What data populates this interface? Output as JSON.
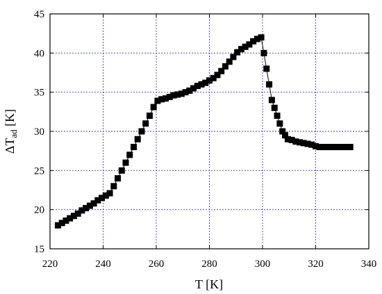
{
  "chart_data": {
    "type": "scatter",
    "title": "",
    "xlabel": "T [K]",
    "ylabel_prefix": "ΔT",
    "ylabel_sub": "ad",
    "ylabel_suffix": " [K]",
    "xlim": [
      220,
      340
    ],
    "ylim": [
      15,
      45
    ],
    "xticks": [
      220,
      240,
      260,
      280,
      300,
      320,
      340
    ],
    "yticks": [
      15,
      20,
      25,
      30,
      35,
      40,
      45
    ],
    "grid": true,
    "marker": "square",
    "marker_color": "#000000",
    "grid_color": "#3a3ab8",
    "series": [
      {
        "x": [
          223,
          224.5,
          226,
          227.5,
          229,
          230.5,
          232,
          233.5,
          235,
          236.5,
          238,
          239.5,
          241,
          242.5,
          244,
          245.5,
          247,
          248.5,
          250,
          251.5,
          253,
          254.5,
          256,
          257.5,
          259,
          260.5,
          262,
          263.5,
          265,
          266.5,
          268,
          269.5,
          271,
          272.5,
          274,
          275.5,
          277,
          278.5,
          280,
          281.5,
          283,
          284.5,
          286,
          287.5,
          289,
          290.5,
          292,
          293.5,
          295,
          296.5,
          298,
          299.5,
          300.5,
          301.5,
          302.5,
          303.5,
          304.5,
          305.5,
          306.5,
          307.5,
          308.5,
          309.5,
          311,
          312.5,
          314,
          315.5,
          317,
          318.5,
          320,
          321.5,
          323,
          324.5,
          326,
          327.5,
          329,
          330.5,
          332,
          333
        ],
        "y": [
          18,
          18.3,
          18.6,
          18.9,
          19.2,
          19.5,
          19.9,
          20.2,
          20.5,
          20.8,
          21.2,
          21.5,
          21.8,
          22.1,
          23,
          24,
          25,
          26,
          27,
          28,
          29,
          30,
          31,
          32,
          33.1,
          33.9,
          34.1,
          34.2,
          34.4,
          34.6,
          34.7,
          34.8,
          35,
          35.2,
          35.5,
          35.8,
          36,
          36.2,
          36.5,
          36.8,
          37.2,
          37.7,
          38.3,
          38.9,
          39.5,
          40.1,
          40.5,
          40.8,
          41.1,
          41.5,
          41.8,
          42,
          40,
          38,
          36,
          34,
          33,
          32,
          31,
          30,
          29.5,
          29,
          28.9,
          28.7,
          28.6,
          28.5,
          28.4,
          28.3,
          28.1,
          28,
          28,
          28,
          28,
          28,
          28,
          28,
          28,
          28
        ]
      }
    ]
  }
}
